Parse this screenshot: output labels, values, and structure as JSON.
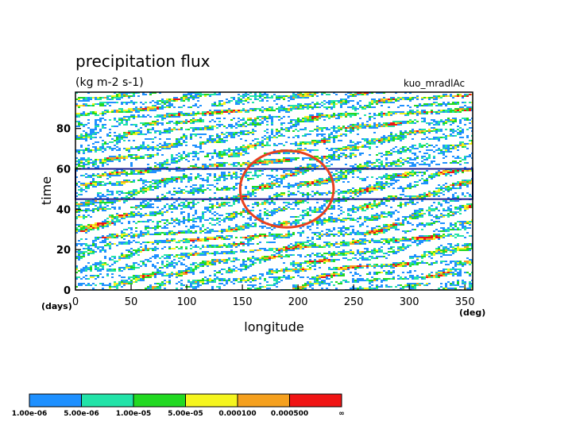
{
  "chart_data": {
    "type": "heatmap",
    "title": "precipitation flux",
    "units": "(kg m-2 s-1)",
    "run_label": "kuo_mradlAc",
    "xlabel": "longitude",
    "ylabel": "time",
    "x_unit_label": "(deg)",
    "y_unit_label": "(days)",
    "xlim": [
      0,
      357
    ],
    "ylim": [
      0,
      98
    ],
    "x_ticks": [
      "0",
      "50",
      "100",
      "150",
      "200",
      "250",
      "300",
      "350"
    ],
    "y_ticks": [
      "0",
      "20",
      "40",
      "60",
      "80"
    ],
    "color_levels": [
      "1.00e-06",
      "5.00e-06",
      "1.00e-05",
      "5.00e-05",
      "0.000100",
      "0.000500",
      "∞"
    ],
    "level_colors": [
      "#1e90ff",
      "#22e3a8",
      "#22d922",
      "#f5f51e",
      "#f5a01e",
      "#f01414"
    ],
    "highlight_band_time": [
      45,
      60
    ],
    "highlight_band_color": "#1a1a8c",
    "highlight_ellipse": {
      "center_lon": 190,
      "center_time": 50,
      "lon_halfwidth": 42,
      "time_halfheight": 19,
      "color": "#e8401e"
    },
    "field_description": "noisy eastward-propagating precipitation streaks",
    "seed": 7
  }
}
